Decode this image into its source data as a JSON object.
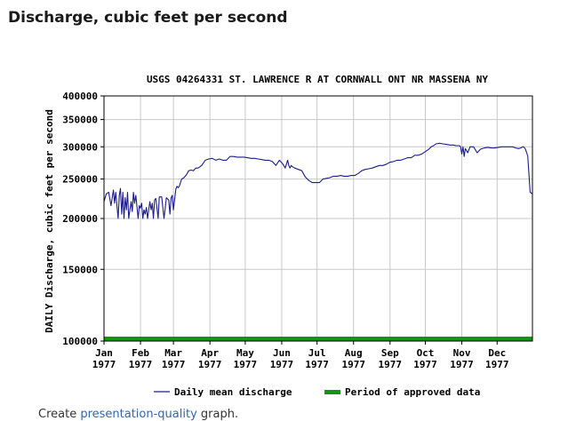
{
  "page": {
    "heading": "Discharge, cubic feet per second",
    "footer_prefix": "Create ",
    "footer_link": "presentation-quality",
    "footer_suffix": " graph."
  },
  "colors": {
    "series": "#1c1c8c",
    "approved": "#129612",
    "grid": "#c8c8c8",
    "frame": "#000000"
  },
  "chart_data": {
    "type": "line",
    "title": "USGS 04264331 ST. LAWRENCE R AT CORNWALL ONT NR MASSENA NY",
    "ylabel": "DAILY Discharge, cubic feet per second",
    "xlabel": "",
    "yscale": "log",
    "ylim": [
      100000,
      400000
    ],
    "xlim": [
      1,
      365
    ],
    "yticks": [
      {
        "value": 100000,
        "label": "100000"
      },
      {
        "value": 150000,
        "label": "150000"
      },
      {
        "value": 200000,
        "label": "200000"
      },
      {
        "value": 250000,
        "label": "250000"
      },
      {
        "value": 300000,
        "label": "300000"
      },
      {
        "value": 350000,
        "label": "350000"
      },
      {
        "value": 400000,
        "label": "400000"
      }
    ],
    "xticks": [
      {
        "day": 1,
        "month": "Jan",
        "year": "1977"
      },
      {
        "day": 32,
        "month": "Feb",
        "year": "1977"
      },
      {
        "day": 60,
        "month": "Mar",
        "year": "1977"
      },
      {
        "day": 91,
        "month": "Apr",
        "year": "1977"
      },
      {
        "day": 121,
        "month": "May",
        "year": "1977"
      },
      {
        "day": 152,
        "month": "Jun",
        "year": "1977"
      },
      {
        "day": 182,
        "month": "Jul",
        "year": "1977"
      },
      {
        "day": 213,
        "month": "Aug",
        "year": "1977"
      },
      {
        "day": 244,
        "month": "Sep",
        "year": "1977"
      },
      {
        "day": 274,
        "month": "Oct",
        "year": "1977"
      },
      {
        "day": 305,
        "month": "Nov",
        "year": "1977"
      },
      {
        "day": 335,
        "month": "Dec",
        "year": "1977"
      }
    ],
    "series": [
      {
        "name": "Daily mean discharge",
        "x": [
          1,
          3,
          5,
          7,
          9,
          10,
          11,
          13,
          14,
          15,
          16,
          17,
          18,
          19,
          20,
          21,
          22,
          24,
          25,
          26,
          27,
          28,
          30,
          31,
          32,
          33,
          34,
          35,
          36,
          37,
          38,
          40,
          41,
          42,
          43,
          44,
          45,
          46,
          47,
          48,
          50,
          52,
          54,
          56,
          57,
          58,
          59,
          60,
          62,
          63,
          64,
          65,
          67,
          69,
          71,
          73,
          75,
          77,
          79,
          81,
          84,
          87,
          90,
          93,
          96,
          99,
          102,
          105,
          108,
          111,
          114,
          117,
          120,
          123,
          126,
          129,
          132,
          135,
          138,
          141,
          144,
          147,
          150,
          153,
          155,
          157,
          158,
          159,
          160,
          161,
          163,
          166,
          169,
          172,
          175,
          178,
          181,
          184,
          187,
          190,
          193,
          196,
          199,
          202,
          205,
          208,
          211,
          214,
          217,
          220,
          223,
          226,
          229,
          232,
          235,
          238,
          241,
          244,
          247,
          250,
          253,
          256,
          259,
          262,
          265,
          268,
          271,
          274,
          277,
          279,
          281,
          283,
          286,
          289,
          292,
          295,
          298,
          300,
          302,
          303,
          304,
          305,
          306,
          307,
          308,
          310,
          312,
          315,
          318,
          321,
          324,
          327,
          330,
          333,
          336,
          339,
          342,
          345,
          348,
          351,
          353,
          355,
          357,
          358,
          359,
          361,
          363,
          365
        ],
        "values": [
          220000,
          230000,
          232000,
          215000,
          235000,
          218000,
          232000,
          200000,
          228000,
          237000,
          205000,
          232000,
          200000,
          225000,
          210000,
          232000,
          200000,
          220000,
          208000,
          232000,
          218000,
          228000,
          200000,
          215000,
          212000,
          218000,
          200000,
          210000,
          205000,
          213000,
          200000,
          220000,
          210000,
          218000,
          200000,
          222000,
          224000,
          212000,
          200000,
          226000,
          226000,
          200000,
          225000,
          222000,
          205000,
          225000,
          228000,
          210000,
          236000,
          240000,
          238000,
          240000,
          250000,
          252000,
          256000,
          262000,
          263000,
          262000,
          266000,
          266000,
          270000,
          278000,
          280000,
          281000,
          278000,
          280000,
          278000,
          278000,
          284000,
          284000,
          283000,
          283000,
          283000,
          282000,
          281000,
          281000,
          280000,
          279000,
          278000,
          278000,
          276000,
          270000,
          278000,
          272000,
          266000,
          278000,
          270000,
          266000,
          270000,
          268000,
          266000,
          264000,
          262000,
          253000,
          248000,
          245000,
          245000,
          245000,
          250000,
          251000,
          252000,
          254000,
          254000,
          255000,
          254000,
          254000,
          255000,
          255000,
          258000,
          262000,
          264000,
          265000,
          266000,
          268000,
          270000,
          270000,
          272000,
          275000,
          276000,
          278000,
          278000,
          280000,
          282000,
          282000,
          286000,
          286000,
          288000,
          292000,
          296000,
          300000,
          302000,
          305000,
          306000,
          305000,
          304000,
          303000,
          303000,
          302000,
          302000,
          302000,
          300000,
          288000,
          300000,
          284000,
          297000,
          290000,
          300000,
          300000,
          290000,
          296000,
          298000,
          299000,
          298000,
          298000,
          299000,
          300000,
          300000,
          300000,
          300000,
          298000,
          297000,
          298000,
          300000,
          299000,
          296000,
          285000,
          232000,
          230000
        ]
      }
    ],
    "legend": [
      {
        "label": "Daily mean discharge",
        "kind": "line"
      },
      {
        "label": "Period of approved data",
        "kind": "bar"
      }
    ],
    "approved_period": {
      "start_day": 1,
      "end_day": 365,
      "level": 100000,
      "label": "Period of approved data"
    },
    "grid": true,
    "legend_position": "bottom"
  }
}
